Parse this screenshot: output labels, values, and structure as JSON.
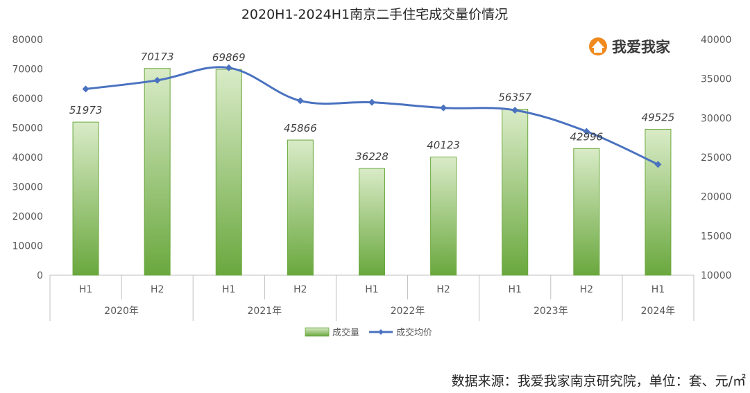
{
  "chart_data": {
    "type": "bar",
    "title": "2020H1-2024H1南京二手住宅成交量价情况",
    "categories": [
      "H1",
      "H2",
      "H1",
      "H2",
      "H1",
      "H2",
      "H1",
      "H2",
      "H1"
    ],
    "groups": [
      {
        "label": "2020年",
        "count": 2
      },
      {
        "label": "2021年",
        "count": 2
      },
      {
        "label": "2022年",
        "count": 2
      },
      {
        "label": "2023年",
        "count": 2
      },
      {
        "label": "2024年",
        "count": 1
      }
    ],
    "series": [
      {
        "name": "成交量",
        "type": "bar",
        "axis": "left",
        "color": "#7cb24f",
        "values": [
          51973,
          70173,
          69869,
          45866,
          36228,
          40123,
          56357,
          42996,
          49525
        ],
        "labels": [
          "51973",
          "70173",
          "69869",
          "45866",
          "36228",
          "40123",
          "56357",
          "42996",
          "49525"
        ]
      },
      {
        "name": "成交均价",
        "type": "line",
        "axis": "right",
        "color": "#4a72c0",
        "values": [
          33700,
          34800,
          36400,
          32200,
          32000,
          31300,
          31000,
          28300,
          24100
        ]
      }
    ],
    "ylim_left": [
      0,
      80000
    ],
    "yticks_left": [
      "0",
      "10000",
      "20000",
      "30000",
      "40000",
      "50000",
      "60000",
      "70000",
      "80000"
    ],
    "ylim_right": [
      10000,
      40000
    ],
    "yticks_right": [
      "10000",
      "15000",
      "20000",
      "25000",
      "30000",
      "35000",
      "40000"
    ],
    "grid": false,
    "legend_position": "bottom"
  },
  "brand": {
    "name": "我爱我家",
    "logo_color": "#f08a1e"
  },
  "source_note": "数据来源：我爱我家南京研究院，单位：套、元/㎡"
}
